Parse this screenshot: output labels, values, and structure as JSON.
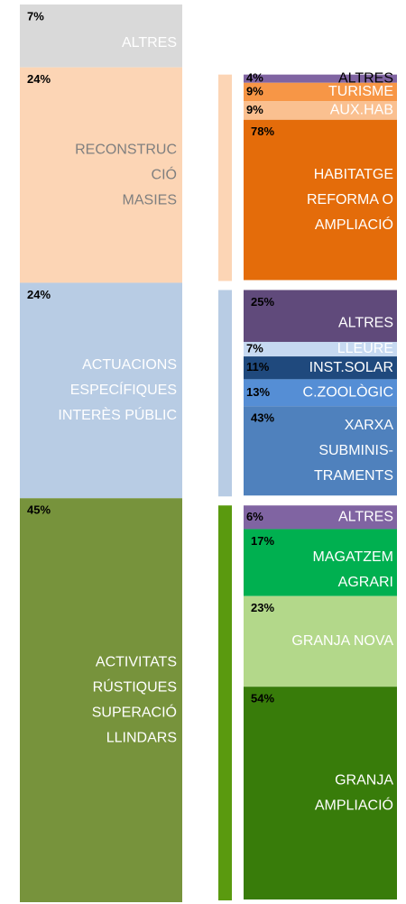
{
  "chart_data": {
    "type": "breakdown",
    "main": {
      "values": [
        7,
        24,
        24,
        45
      ],
      "value_labels": [
        "7%",
        "24%",
        "24%",
        "45%"
      ],
      "labels": [
        [
          "ALTRES"
        ],
        [
          "RECONSTRUC",
          "CIÓ",
          "MASIES"
        ],
        [
          "ACTUACIONS",
          "ESPECÍFIQUES",
          "INTERÈS PÚBLIC"
        ],
        [
          "ACTIVITATS",
          "RÚSTIQUES",
          "SUPERACIÓ",
          "LLINDARS"
        ]
      ],
      "colors": [
        "#d9d9d9",
        "#fcd5b5",
        "#b8cce4",
        "#77933c"
      ],
      "label_colors": [
        "#ffffff",
        "#7f7f7f",
        "#ffffff",
        "#ffffff"
      ]
    },
    "details": [
      {
        "accent_color": "#fcd5b5",
        "values": [
          4,
          9,
          9,
          78
        ],
        "value_labels": [
          "4%",
          "9%",
          "9%",
          "78%"
        ],
        "labels": [
          [
            "ALTRES"
          ],
          [
            "TURISME"
          ],
          [
            "AUX.HAB"
          ],
          [
            "HABITATGE",
            "REFORMA O",
            "AMPLIACIÓ"
          ]
        ],
        "colors": [
          "#8064a2",
          "#f79646",
          "#fac090",
          "#e46c0a"
        ],
        "label_colors": [
          "#000000",
          "#ffffff",
          "#ffffff",
          "#ffffff"
        ]
      },
      {
        "accent_color": "#b8cce4",
        "values": [
          25,
          7,
          11,
          13,
          43
        ],
        "value_labels": [
          "25%",
          "7%",
          "11%",
          "13%",
          "43%"
        ],
        "labels": [
          [
            "ALTRES"
          ],
          [
            "LLEURE"
          ],
          [
            "INST.SOLAR"
          ],
          [
            "C.ZOOLÒGIC"
          ],
          [
            "XARXA",
            "SUBMINIS-",
            "TRAMENTS"
          ]
        ],
        "colors": [
          "#604a7b",
          "#c6d9f1",
          "#1f497d",
          "#558ed5",
          "#4f81bd"
        ],
        "label_colors": [
          "#ffffff",
          "#ffffff",
          "#ffffff",
          "#ffffff",
          "#ffffff"
        ]
      },
      {
        "accent_color": "#5a9a0f",
        "values": [
          6,
          17,
          23,
          54
        ],
        "value_labels": [
          "6%",
          "17%",
          "23%",
          "54%"
        ],
        "labels": [
          [
            "ALTRES"
          ],
          [
            "MAGATZEM",
            "AGRARI"
          ],
          [
            "GRANJA NOVA"
          ],
          [
            "GRANJA",
            "AMPLIACIÓ"
          ]
        ],
        "colors": [
          "#8064a2",
          "#00b050",
          "#b3d88a",
          "#387c0a"
        ],
        "label_colors": [
          "#ffffff",
          "#ffffff",
          "#ffffff",
          "#ffffff"
        ]
      }
    ]
  }
}
